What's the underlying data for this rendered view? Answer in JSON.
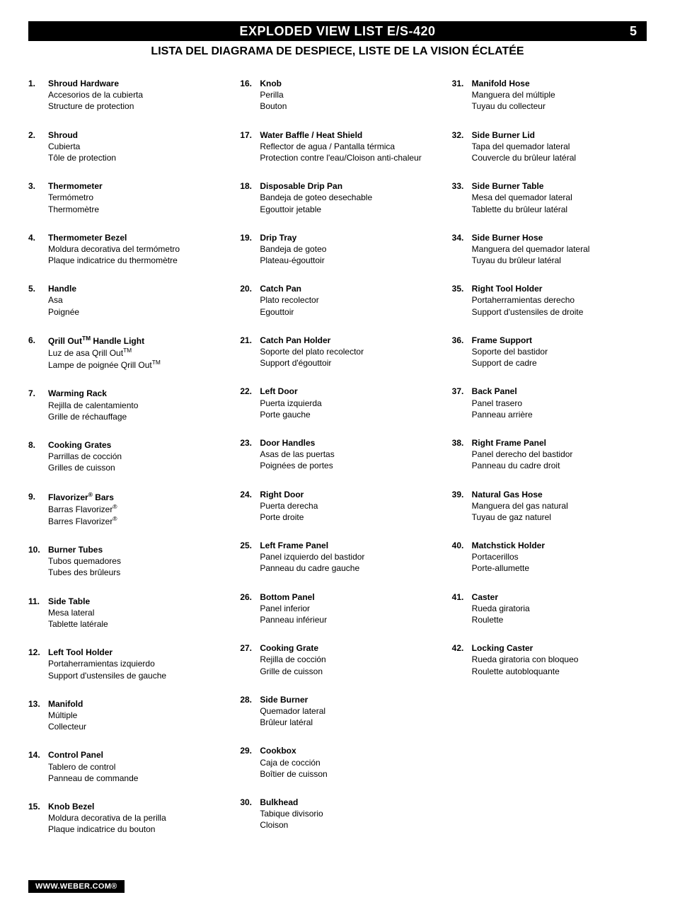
{
  "header": {
    "title": "EXPLODED VIEW LIST  E/S-420",
    "page": "5",
    "subtitle": "LISTA DEL DIAGRAMA DE DESPIECE, LISTE DE LA VISION ÉCLATÉE"
  },
  "columns": [
    [
      {
        "n": "1.",
        "en": "Shroud Hardware",
        "es": "Accesorios de la cubierta",
        "fr": "Structure de protection"
      },
      {
        "n": "2.",
        "en": "Shroud",
        "es": "Cubierta",
        "fr": "Tôle de protection"
      },
      {
        "n": "3.",
        "en": "Thermometer",
        "es": "Termómetro",
        "fr": "Thermomètre"
      },
      {
        "n": "4.",
        "en": "Thermometer Bezel",
        "es": "Moldura decorativa del termómetro",
        "fr": "Plaque indicatrice du thermomètre"
      },
      {
        "n": "5.",
        "en": "Handle",
        "es": "Asa",
        "fr": "Poignée"
      },
      {
        "n": "6.",
        "en_html": "Qrill Out<sup>TM</sup> Handle Light",
        "es_html": "Luz de asa Qrill Out<sup>TM</sup>",
        "fr_html": "Lampe de poignée Qrill Out<sup>TM</sup>"
      },
      {
        "n": "7.",
        "en": "Warming Rack",
        "es": "Rejilla de calentamiento",
        "fr": "Grille de réchauffage"
      },
      {
        "n": "8.",
        "en": "Cooking Grates",
        "es": "Parrillas de cocción",
        "fr": "Grilles de cuisson"
      },
      {
        "n": "9.",
        "en_html": "Flavorizer<sup>®</sup> Bars",
        "es_html": "Barras Flavorizer<sup>®</sup>",
        "fr_html": "Barres Flavorizer<sup>®</sup>"
      },
      {
        "n": "10.",
        "en": "Burner Tubes",
        "es": "Tubos quemadores",
        "fr": "Tubes des brûleurs"
      },
      {
        "n": "11.",
        "en": "Side Table",
        "es": "Mesa lateral",
        "fr": "Tablette latérale"
      },
      {
        "n": "12.",
        "en": "Left Tool Holder",
        "es": "Portaherramientas izquierdo",
        "fr": "Support d'ustensiles de gauche"
      },
      {
        "n": "13.",
        "en": "Manifold",
        "es": "Múltiple",
        "fr": "Collecteur"
      },
      {
        "n": "14.",
        "en": "Control Panel",
        "es": "Tablero de control",
        "fr": "Panneau de commande"
      },
      {
        "n": "15.",
        "en": "Knob Bezel",
        "es": "Moldura decorativa de la perilla",
        "fr": "Plaque indicatrice du bouton"
      }
    ],
    [
      {
        "n": "16.",
        "en": "Knob",
        "es": "Perilla",
        "fr": "Bouton"
      },
      {
        "n": "17.",
        "en": "Water Baffle / Heat Shield",
        "es": "Reflector de agua / Pantalla térmica",
        "fr": "Protection contre l'eau/Cloison anti-chaleur"
      },
      {
        "n": "18.",
        "en": "Disposable Drip Pan",
        "es": "Bandeja de goteo desechable",
        "fr": "Egouttoir jetable"
      },
      {
        "n": "19.",
        "en": "Drip Tray",
        "es": "Bandeja de goteo",
        "fr": "Plateau-égouttoir"
      },
      {
        "n": "20.",
        "en": "Catch Pan",
        "es": "Plato recolector",
        "fr": "Egouttoir"
      },
      {
        "n": "21.",
        "en": "Catch Pan Holder",
        "es": "Soporte del plato recolector",
        "fr": "Support d'égouttoir"
      },
      {
        "n": "22.",
        "en": "Left Door",
        "es": "Puerta izquierda",
        "fr": "Porte gauche"
      },
      {
        "n": "23.",
        "en": "Door Handles",
        "es": "Asas de las puertas",
        "fr": "Poignées de portes"
      },
      {
        "n": "24.",
        "en": "Right Door",
        "es": "Puerta derecha",
        "fr": "Porte droite"
      },
      {
        "n": "25.",
        "en": "Left Frame Panel",
        "es": "Panel izquierdo del bastidor",
        "fr": "Panneau du cadre gauche"
      },
      {
        "n": "26.",
        "en": "Bottom Panel",
        "es": "Panel inferior",
        "fr": "Panneau inférieur"
      },
      {
        "n": "27.",
        "en": "Cooking Grate",
        "es": "Rejilla de cocción",
        "fr": "Grille de cuisson"
      },
      {
        "n": "28.",
        "en": "Side Burner",
        "es": "Quemador lateral",
        "fr": "Brûleur latéral"
      },
      {
        "n": "29.",
        "en": "Cookbox",
        "es": "Caja de cocción",
        "fr": "Boîtier de cuisson"
      },
      {
        "n": "30.",
        "en": "Bulkhead",
        "es": "Tabique divisorio",
        "fr": "Cloison"
      }
    ],
    [
      {
        "n": "31.",
        "en": "Manifold Hose",
        "es": "Manguera del múltiple",
        "fr": "Tuyau du collecteur"
      },
      {
        "n": "32.",
        "en": "Side Burner Lid",
        "es": "Tapa del quemador lateral",
        "fr": "Couvercle du brûleur latéral"
      },
      {
        "n": "33.",
        "en": "Side Burner Table",
        "es": "Mesa del quemador lateral",
        "fr": "Tablette du brûleur latéral"
      },
      {
        "n": "34.",
        "en": "Side Burner Hose",
        "es": "Manguera del quemador lateral",
        "fr": "Tuyau du brûleur latéral"
      },
      {
        "n": "35.",
        "en": "Right Tool Holder",
        "es": "Portaherramientas derecho",
        "fr": "Support d'ustensiles de droite"
      },
      {
        "n": "36.",
        "en": "Frame Support",
        "es": "Soporte del bastidor",
        "fr": "Support de cadre"
      },
      {
        "n": "37.",
        "en": "Back Panel",
        "es": "Panel trasero",
        "fr": "Panneau arrière"
      },
      {
        "n": "38.",
        "en": "Right Frame Panel",
        "es": "Panel derecho del bastidor",
        "fr": "Panneau du cadre droit"
      },
      {
        "n": "39.",
        "en": "Natural Gas Hose",
        "es": "Manguera del gas natural",
        "fr": "Tuyau de gaz naturel"
      },
      {
        "n": "40.",
        "en": "Matchstick Holder",
        "es": "Portacerillos",
        "fr": "Porte-allumette"
      },
      {
        "n": "41.",
        "en": "Caster",
        "es": "Rueda giratoria",
        "fr": "Roulette"
      },
      {
        "n": "42.",
        "en": "Locking Caster",
        "es": "Rueda giratoria con bloqueo",
        "fr": "Roulette autobloquante"
      }
    ]
  ],
  "footer": "WWW.WEBER.COM®"
}
